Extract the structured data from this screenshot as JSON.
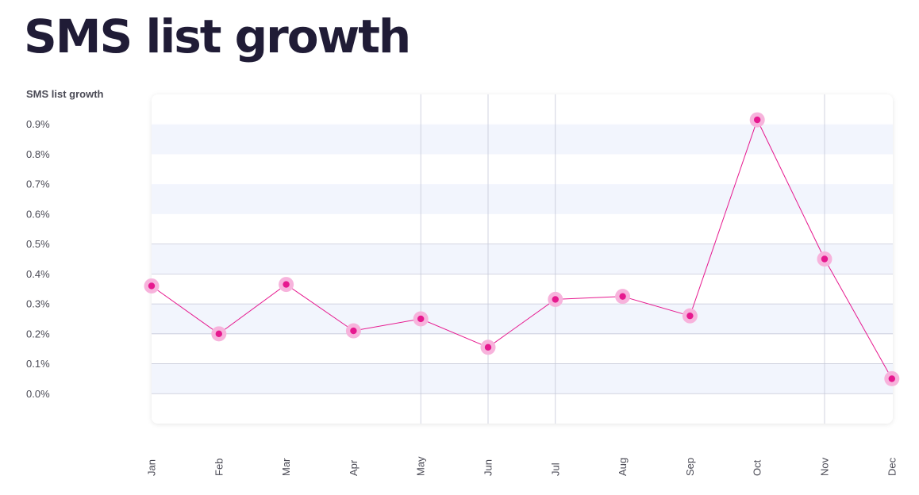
{
  "page": {
    "title": "SMS list growth"
  },
  "chart_data": {
    "type": "line",
    "title": "SMS list growth",
    "ylabel": "SMS list growth",
    "xlabel": "",
    "categories": [
      "Jan",
      "Feb",
      "Mar",
      "Apr",
      "May",
      "Jun",
      "Jul",
      "Aug",
      "Sep",
      "Oct",
      "Nov",
      "Dec"
    ],
    "series": [
      {
        "values": [
          0.36,
          0.2,
          0.365,
          0.21,
          0.25,
          0.155,
          0.315,
          0.325,
          0.26,
          0.915,
          0.45,
          0.05
        ]
      }
    ],
    "y_ticks": [
      0.0,
      0.1,
      0.2,
      0.3,
      0.4,
      0.5,
      0.6,
      0.7,
      0.8,
      0.9
    ],
    "y_tick_labels": [
      "0.0%",
      "0.1%",
      "0.2%",
      "0.3%",
      "0.4%",
      "0.5%",
      "0.6%",
      "0.7%",
      "0.8%",
      "0.9%"
    ],
    "ylim": [
      -0.1,
      1.0
    ],
    "grid": true,
    "legend": "none",
    "colors": {
      "line": "#e6198f",
      "point": "#e6198f",
      "point_halo": "#f7b3dc",
      "band": "#f2f5fd",
      "grid": "#c5c8d8",
      "text": "#4a4a55",
      "title": "#201c36"
    }
  }
}
